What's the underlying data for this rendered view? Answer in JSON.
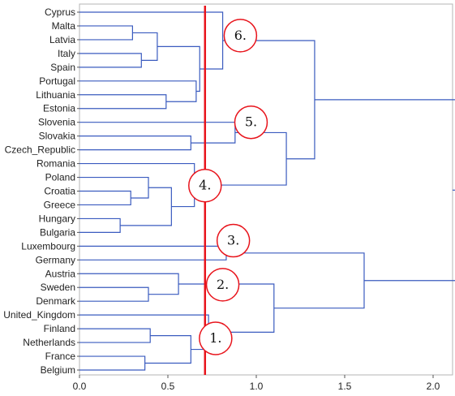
{
  "chart_data": {
    "type": "dendrogram",
    "orientation": "horizontal",
    "leaves": [
      "Cyprus",
      "Malta",
      "Latvia",
      "Italy",
      "Spain",
      "Portugal",
      "Lithuania",
      "Estonia",
      "Slovenia",
      "Slovakia",
      "Czech_Republic",
      "Romania",
      "Poland",
      "Croatia",
      "Greece",
      "Hungary",
      "Bulgaria",
      "Luxembourg",
      "Germany",
      "Austria",
      "Sweden",
      "Denmark",
      "United_Kingdom",
      "Finland",
      "Netherlands",
      "France",
      "Belgium"
    ],
    "merges": [
      {
        "a": "Malta",
        "b": "Latvia",
        "height": 0.3
      },
      {
        "a": "Italy",
        "b": "Spain",
        "height": 0.35
      },
      {
        "a": "m1",
        "b": "m2",
        "height": 0.44
      },
      {
        "a": "Lithuania",
        "b": "Estonia",
        "height": 0.49
      },
      {
        "a": "Portugal",
        "b": "m4",
        "height": 0.66
      },
      {
        "a": "m3",
        "b": "m5",
        "height": 0.68
      },
      {
        "a": "Cyprus",
        "b": "m6",
        "height": 0.81
      },
      {
        "a": "Slovakia",
        "b": "Czech_Republic",
        "height": 0.63
      },
      {
        "a": "Slovenia",
        "b": "m8",
        "height": 0.88
      },
      {
        "a": "Croatia",
        "b": "Greece",
        "height": 0.29
      },
      {
        "a": "Poland",
        "b": "m10",
        "height": 0.39
      },
      {
        "a": "Hungary",
        "b": "Bulgaria",
        "height": 0.23
      },
      {
        "a": "m11",
        "b": "m12",
        "height": 0.52
      },
      {
        "a": "Romania",
        "b": "m13",
        "height": 0.65
      },
      {
        "a": "m9",
        "b": "m14",
        "height": 1.17
      },
      {
        "a": "m7",
        "b": "m15",
        "height": 1.33
      },
      {
        "a": "Sweden",
        "b": "Denmark",
        "height": 0.39
      },
      {
        "a": "Austria",
        "b": "m17",
        "height": 0.56
      },
      {
        "a": "Finland",
        "b": "Netherlands",
        "height": 0.4
      },
      {
        "a": "France",
        "b": "Belgium",
        "height": 0.37
      },
      {
        "a": "m19",
        "b": "m20",
        "height": 0.63
      },
      {
        "a": "United_Kingdom",
        "b": "m21",
        "height": 0.73
      },
      {
        "a": "m18",
        "b": "m22",
        "height": 1.1
      },
      {
        "a": "Luxembourg",
        "b": "Germany",
        "height": 0.83
      },
      {
        "a": "m24",
        "b": "m23",
        "height": 1.61
      },
      {
        "a": "m16",
        "b": "m25",
        "height": 2.16
      }
    ],
    "x_ticks": [
      "0.0",
      "0.5",
      "1.0",
      "1.5",
      "2.0"
    ],
    "xlim": [
      0,
      2.15
    ],
    "cut_height": 0.71,
    "cut_color": "#e8141c",
    "link_color": "#3a5bbf",
    "cluster_labels": [
      {
        "text": "6.",
        "x": 0.91,
        "leaf_pos": 1.7
      },
      {
        "text": "5.",
        "x": 0.97,
        "leaf_pos": 8.0
      },
      {
        "text": "4.",
        "x": 0.71,
        "leaf_pos": 12.6
      },
      {
        "text": "3.",
        "x": 0.87,
        "leaf_pos": 16.6
      },
      {
        "text": "2.",
        "x": 0.81,
        "leaf_pos": 19.8
      },
      {
        "text": "1.",
        "x": 0.77,
        "leaf_pos": 23.7
      }
    ]
  }
}
